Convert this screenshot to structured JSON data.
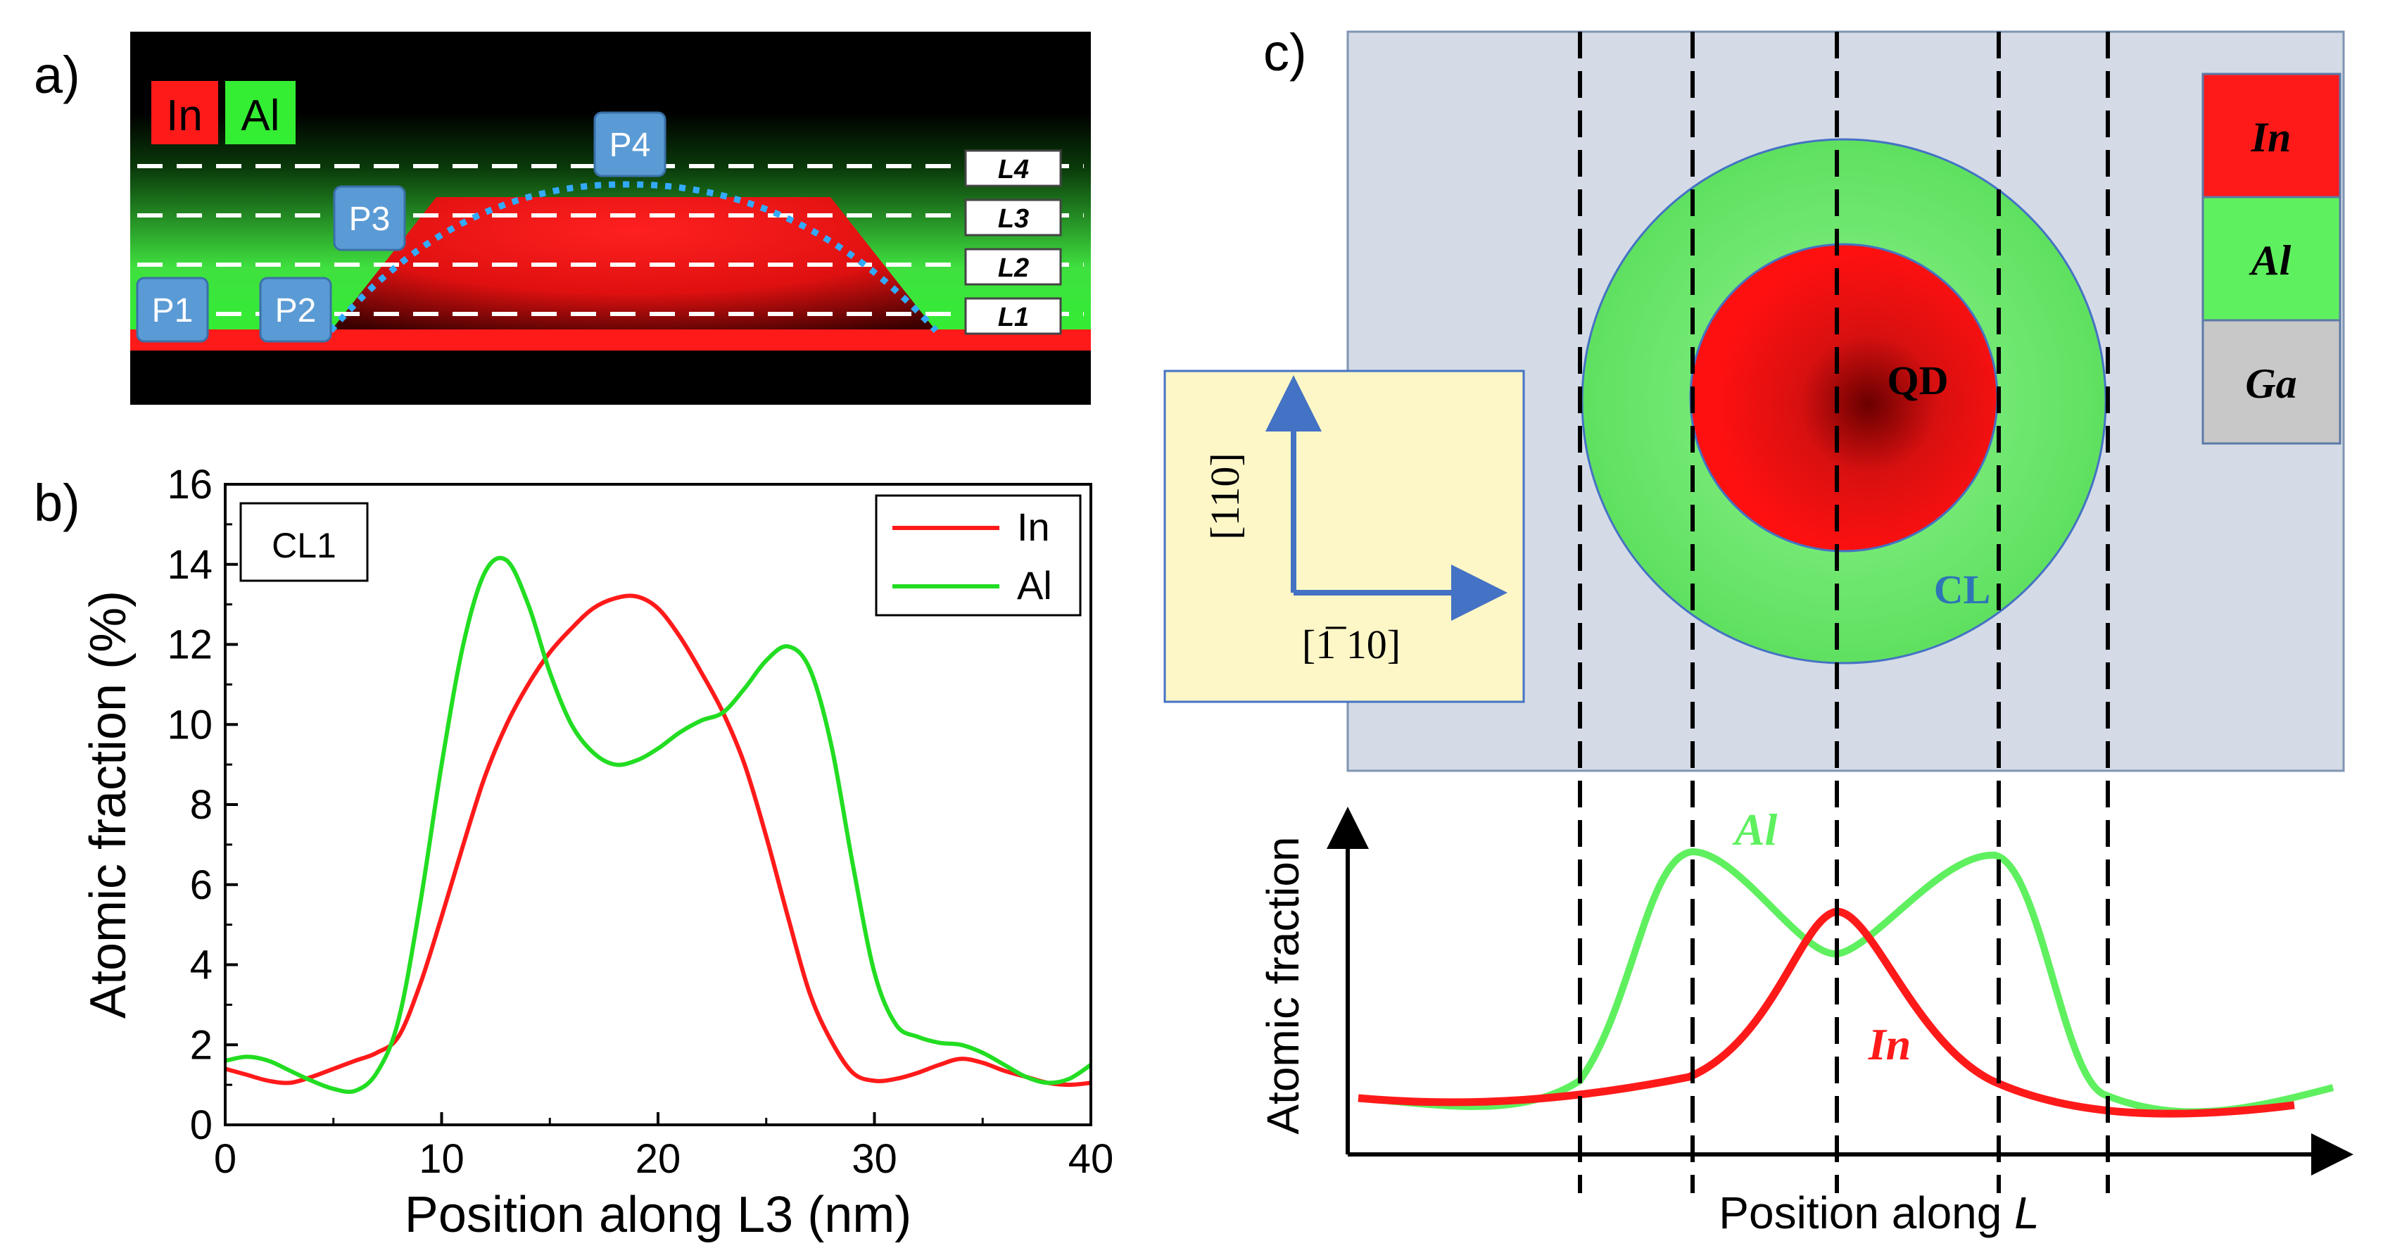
{
  "panel_a": {
    "label": "a)",
    "legend": {
      "in_label": "In",
      "al_label": "Al"
    },
    "points": [
      "P1",
      "P2",
      "P3",
      "P4"
    ],
    "lines": [
      "L4",
      "L3",
      "L2",
      "L1"
    ],
    "colors": {
      "in": "#ff1a1a",
      "al": "#33ee33",
      "background": "#000000",
      "marker": "#5b9bd5",
      "profile": "#33aaff"
    }
  },
  "panel_b": {
    "label": "b)",
    "tag": "CL1"
  },
  "panel_c": {
    "label": "c)",
    "qd_label": "QD",
    "cl_label": "CL",
    "legend": [
      "In",
      "Al",
      "Ga"
    ],
    "axis_vertical": "[110]",
    "axis_horizontal": "[1̅ 10]",
    "curve_al_label": "Al",
    "curve_in_label": "In",
    "ylabel": "Atomic fraction",
    "xlabel_prefix": "Position along ",
    "xlabel_var": "L",
    "colors": {
      "in": "#ff1a1a",
      "al": "#5ff05f",
      "ga": "#c8c8c8",
      "substrate": "#d4dbe6",
      "axis_box": "#fdf7c7",
      "arrow": "#4472c4"
    }
  },
  "chart_data": {
    "type": "line",
    "title": "",
    "xlabel": "Position along L3 (nm)",
    "ylabel": "Atomic fraction (%)",
    "xlim": [
      0,
      40
    ],
    "ylim": [
      0,
      16
    ],
    "xticks": [
      0,
      10,
      20,
      30,
      40
    ],
    "yticks": [
      0,
      2,
      4,
      6,
      8,
      10,
      12,
      14,
      16
    ],
    "legend_position": "top-right",
    "series": [
      {
        "name": "In",
        "color": "#ff1a1a",
        "x": [
          0,
          1,
          2,
          3,
          4,
          5,
          6,
          7,
          8,
          9,
          10,
          11,
          12,
          13,
          14,
          15,
          16,
          17,
          18,
          19,
          20,
          21,
          22,
          23,
          24,
          25,
          26,
          27,
          28,
          29,
          30,
          31,
          32,
          33,
          34,
          35,
          36,
          37,
          38,
          39,
          40
        ],
        "y": [
          1.4,
          1.25,
          1.1,
          1.05,
          1.2,
          1.4,
          1.6,
          1.8,
          2.2,
          3.5,
          5.2,
          7.0,
          8.7,
          10.0,
          11.0,
          11.8,
          12.4,
          12.9,
          13.15,
          13.2,
          12.9,
          12.2,
          11.3,
          10.3,
          9.0,
          7.2,
          5.2,
          3.3,
          2.1,
          1.3,
          1.1,
          1.15,
          1.3,
          1.5,
          1.65,
          1.55,
          1.35,
          1.2,
          1.05,
          1.0,
          1.05
        ]
      },
      {
        "name": "Al",
        "color": "#22dd22",
        "x": [
          0,
          1,
          2,
          3,
          4,
          5,
          6,
          7,
          8,
          9,
          10,
          11,
          12,
          13,
          14,
          15,
          16,
          17,
          18,
          19,
          20,
          21,
          22,
          23,
          24,
          25,
          26,
          27,
          28,
          29,
          30,
          31,
          32,
          33,
          34,
          35,
          36,
          37,
          38,
          39,
          40
        ],
        "y": [
          1.6,
          1.7,
          1.6,
          1.35,
          1.1,
          0.9,
          0.85,
          1.3,
          2.6,
          5.5,
          9.0,
          12.0,
          13.8,
          14.1,
          13.0,
          11.3,
          10.0,
          9.3,
          9.0,
          9.1,
          9.4,
          9.8,
          10.1,
          10.3,
          10.9,
          11.6,
          11.95,
          11.4,
          9.5,
          6.5,
          3.8,
          2.5,
          2.2,
          2.05,
          2.0,
          1.8,
          1.5,
          1.2,
          1.05,
          1.15,
          1.5
        ]
      }
    ]
  }
}
